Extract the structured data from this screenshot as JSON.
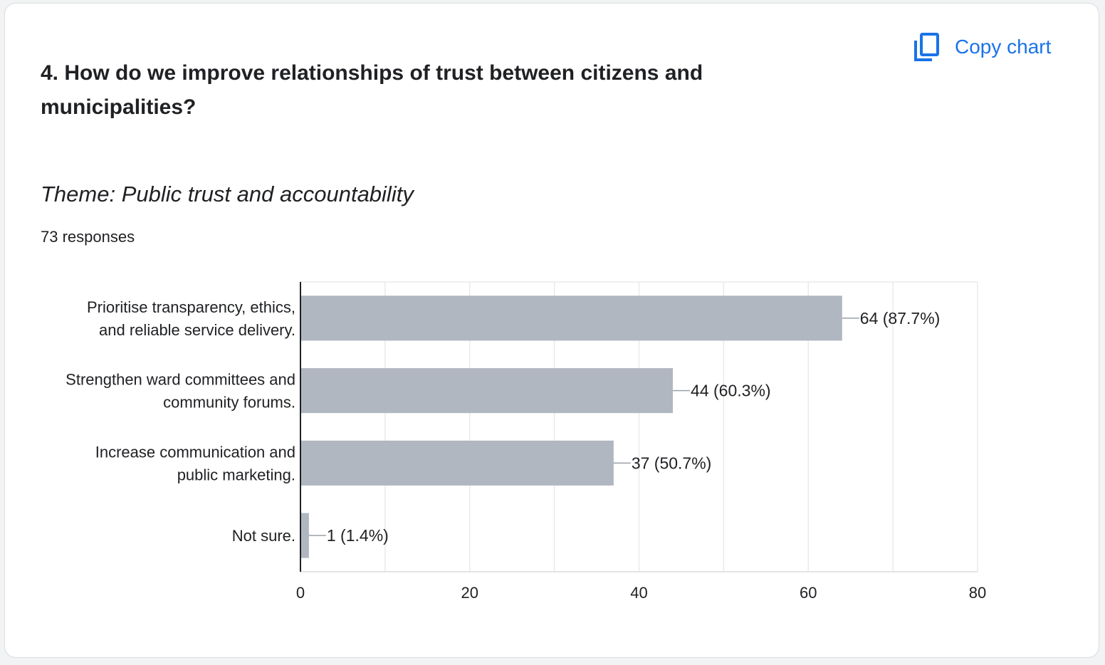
{
  "question": {
    "title": "4. How do we improve relationships of trust between citizens and municipalities?",
    "copy_label": "Copy chart",
    "copy_icon": "copy-icon"
  },
  "chart_data": {
    "type": "bar",
    "orientation": "horizontal",
    "title": "Theme: Public trust and accountability",
    "responses_label": "73 responses",
    "categories": [
      [
        "Prioritise transparency, ethics,",
        "and reliable service delivery."
      ],
      [
        "Strengthen ward committees and",
        "community forums."
      ],
      [
        "Increase communication and",
        "public marketing."
      ],
      [
        "Not sure."
      ]
    ],
    "values": [
      64,
      44,
      37,
      1
    ],
    "value_labels": [
      "64 (87.7%)",
      "44 (60.3%)",
      "37 (50.7%)",
      "1 (1.4%)"
    ],
    "xlim": [
      0,
      80
    ],
    "xticks": [
      0,
      20,
      40,
      60,
      80
    ],
    "grid_step": 10,
    "bar_color": "#b0b7c0",
    "grid": true
  }
}
